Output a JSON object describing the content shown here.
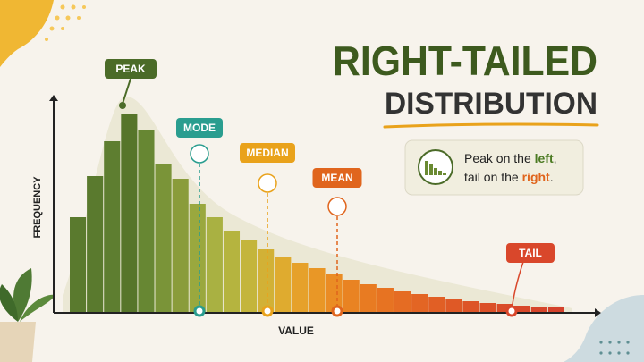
{
  "chart_data": {
    "type": "bar",
    "title": "RIGHT-TAILED",
    "subtitle": "DISTRIBUTION",
    "y_label": "FREQUENCY",
    "x_label": "VALUE",
    "values": [
      107,
      153,
      192,
      223,
      205,
      167,
      150,
      122,
      107,
      92,
      82,
      71,
      63,
      56,
      50,
      44,
      37,
      32,
      28,
      24,
      21,
      18,
      15,
      13,
      11,
      10,
      8,
      7,
      6
    ],
    "colors": [
      "#5a7a2e",
      "#5a7a2e",
      "#5e7e30",
      "#56752a",
      "#678733",
      "#7a9438",
      "#8a9c3b",
      "#9aa83e",
      "#a9b142",
      "#b5b43f",
      "#c4b53b",
      "#d2b136",
      "#dfab2f",
      "#e6a12a",
      "#e99726",
      "#ea8c24",
      "#e98322",
      "#e87b22",
      "#e77322",
      "#e56c23",
      "#e36524",
      "#e15f25",
      "#df5926",
      "#dd5427",
      "#db5028",
      "#d94c29",
      "#d8482a",
      "#d6452b",
      "#d4422c"
    ],
    "ylim": [
      0,
      240
    ],
    "annotations": [
      "PEAK",
      "MODE",
      "MEDIAN",
      "MEAN",
      "TAIL"
    ],
    "callout": [
      "Peak on the ",
      "left",
      ",",
      "tail on the ",
      "right",
      "."
    ]
  }
}
